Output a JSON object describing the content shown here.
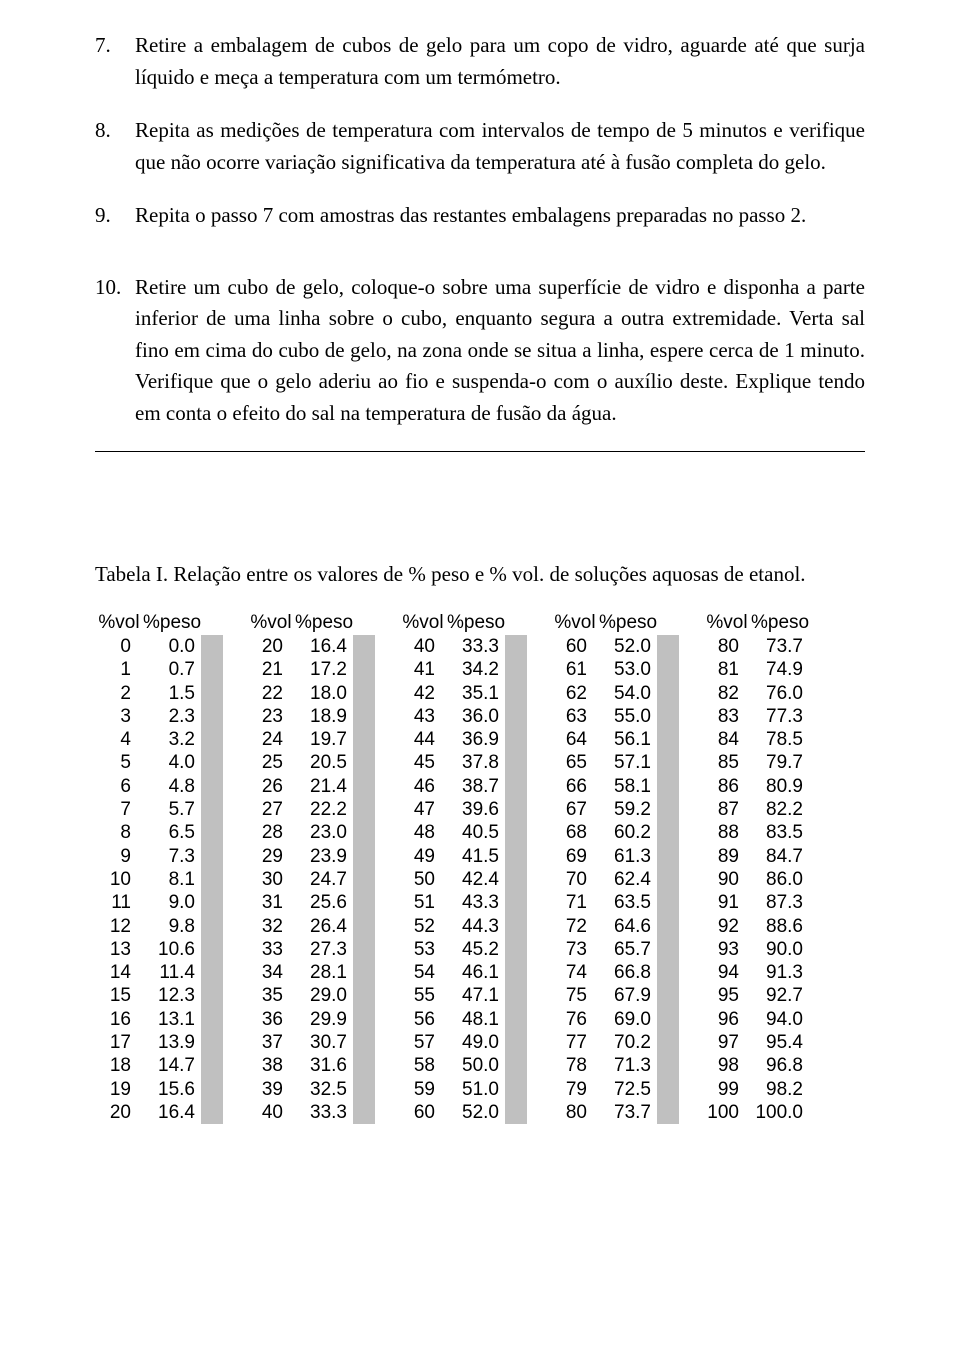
{
  "list": [
    {
      "num": "7.",
      "text": "Retire a embalagem de cubos de gelo para um copo de vidro, aguarde até que surja líquido e meça a temperatura com um termómetro."
    },
    {
      "num": "8.",
      "text": "Repita as medições de temperatura com intervalos de tempo de 5 minutos e verifique que não ocorre variação significativa da temperatura até à fusão completa do gelo."
    },
    {
      "num": "9.",
      "text": "Repita o passo 7 com amostras das restantes embalagens preparadas no passo 2."
    },
    {
      "num": "10.",
      "text": "Retire um cubo de gelo, coloque-o sobre uma superfície de vidro e disponha a parte inferior de uma linha sobre o cubo, enquanto segura a outra extremidade. Verta sal fino em cima do cubo de gelo, na zona onde se situa a linha, espere cerca de 1 minuto. Verifique que o gelo aderiu ao fio e suspenda-o com o auxílio deste. Explique tendo em conta o efeito do sal na temperatura de fusão da água."
    }
  ],
  "table_title": "Tabela I. Relação entre os valores de % peso e % vol. de soluções aquosas de etanol.",
  "headers": {
    "vol": "%vol",
    "peso": "%peso"
  },
  "table": {
    "type": "table",
    "background_color": "#ffffff",
    "spacer_color": "#c0c0c0",
    "font_family": "Arial",
    "font_size": 19,
    "groups": [
      {
        "vol": [
          0,
          1,
          2,
          3,
          4,
          5,
          6,
          7,
          8,
          9,
          10,
          11,
          12,
          13,
          14,
          15,
          16,
          17,
          18,
          19,
          20
        ],
        "peso": [
          "0.0",
          "0.7",
          "1.5",
          "2.3",
          "3.2",
          "4.0",
          "4.8",
          "5.7",
          "6.5",
          "7.3",
          "8.1",
          "9.0",
          "9.8",
          "10.6",
          "11.4",
          "12.3",
          "13.1",
          "13.9",
          "14.7",
          "15.6",
          "16.4"
        ]
      },
      {
        "vol": [
          20,
          21,
          22,
          23,
          24,
          25,
          26,
          27,
          28,
          29,
          30,
          31,
          32,
          33,
          34,
          35,
          36,
          37,
          38,
          39,
          40
        ],
        "peso": [
          "16.4",
          "17.2",
          "18.0",
          "18.9",
          "19.7",
          "20.5",
          "21.4",
          "22.2",
          "23.0",
          "23.9",
          "24.7",
          "25.6",
          "26.4",
          "27.3",
          "28.1",
          "29.0",
          "29.9",
          "30.7",
          "31.6",
          "32.5",
          "33.3"
        ]
      },
      {
        "vol": [
          40,
          41,
          42,
          43,
          44,
          45,
          46,
          47,
          48,
          49,
          50,
          51,
          52,
          53,
          54,
          55,
          56,
          57,
          58,
          59,
          60
        ],
        "peso": [
          "33.3",
          "34.2",
          "35.1",
          "36.0",
          "36.9",
          "37.8",
          "38.7",
          "39.6",
          "40.5",
          "41.5",
          "42.4",
          "43.3",
          "44.3",
          "45.2",
          "46.1",
          "47.1",
          "48.1",
          "49.0",
          "50.0",
          "51.0",
          "52.0"
        ]
      },
      {
        "vol": [
          60,
          61,
          62,
          63,
          64,
          65,
          66,
          67,
          68,
          69,
          70,
          71,
          72,
          73,
          74,
          75,
          76,
          77,
          78,
          79,
          80
        ],
        "peso": [
          "52.0",
          "53.0",
          "54.0",
          "55.0",
          "56.1",
          "57.1",
          "58.1",
          "59.2",
          "60.2",
          "61.3",
          "62.4",
          "63.5",
          "64.6",
          "65.7",
          "66.8",
          "67.9",
          "69.0",
          "70.2",
          "71.3",
          "72.5",
          "73.7"
        ]
      },
      {
        "vol": [
          80,
          81,
          82,
          83,
          84,
          85,
          86,
          87,
          88,
          89,
          90,
          91,
          92,
          93,
          94,
          95,
          96,
          97,
          98,
          99,
          100
        ],
        "peso": [
          "73.7",
          "74.9",
          "76.0",
          "77.3",
          "78.5",
          "79.7",
          "80.9",
          "82.2",
          "83.5",
          "84.7",
          "86.0",
          "87.3",
          "88.6",
          "90.0",
          "91.3",
          "92.7",
          "94.0",
          "95.4",
          "96.8",
          "98.2",
          "100.0"
        ]
      }
    ]
  }
}
